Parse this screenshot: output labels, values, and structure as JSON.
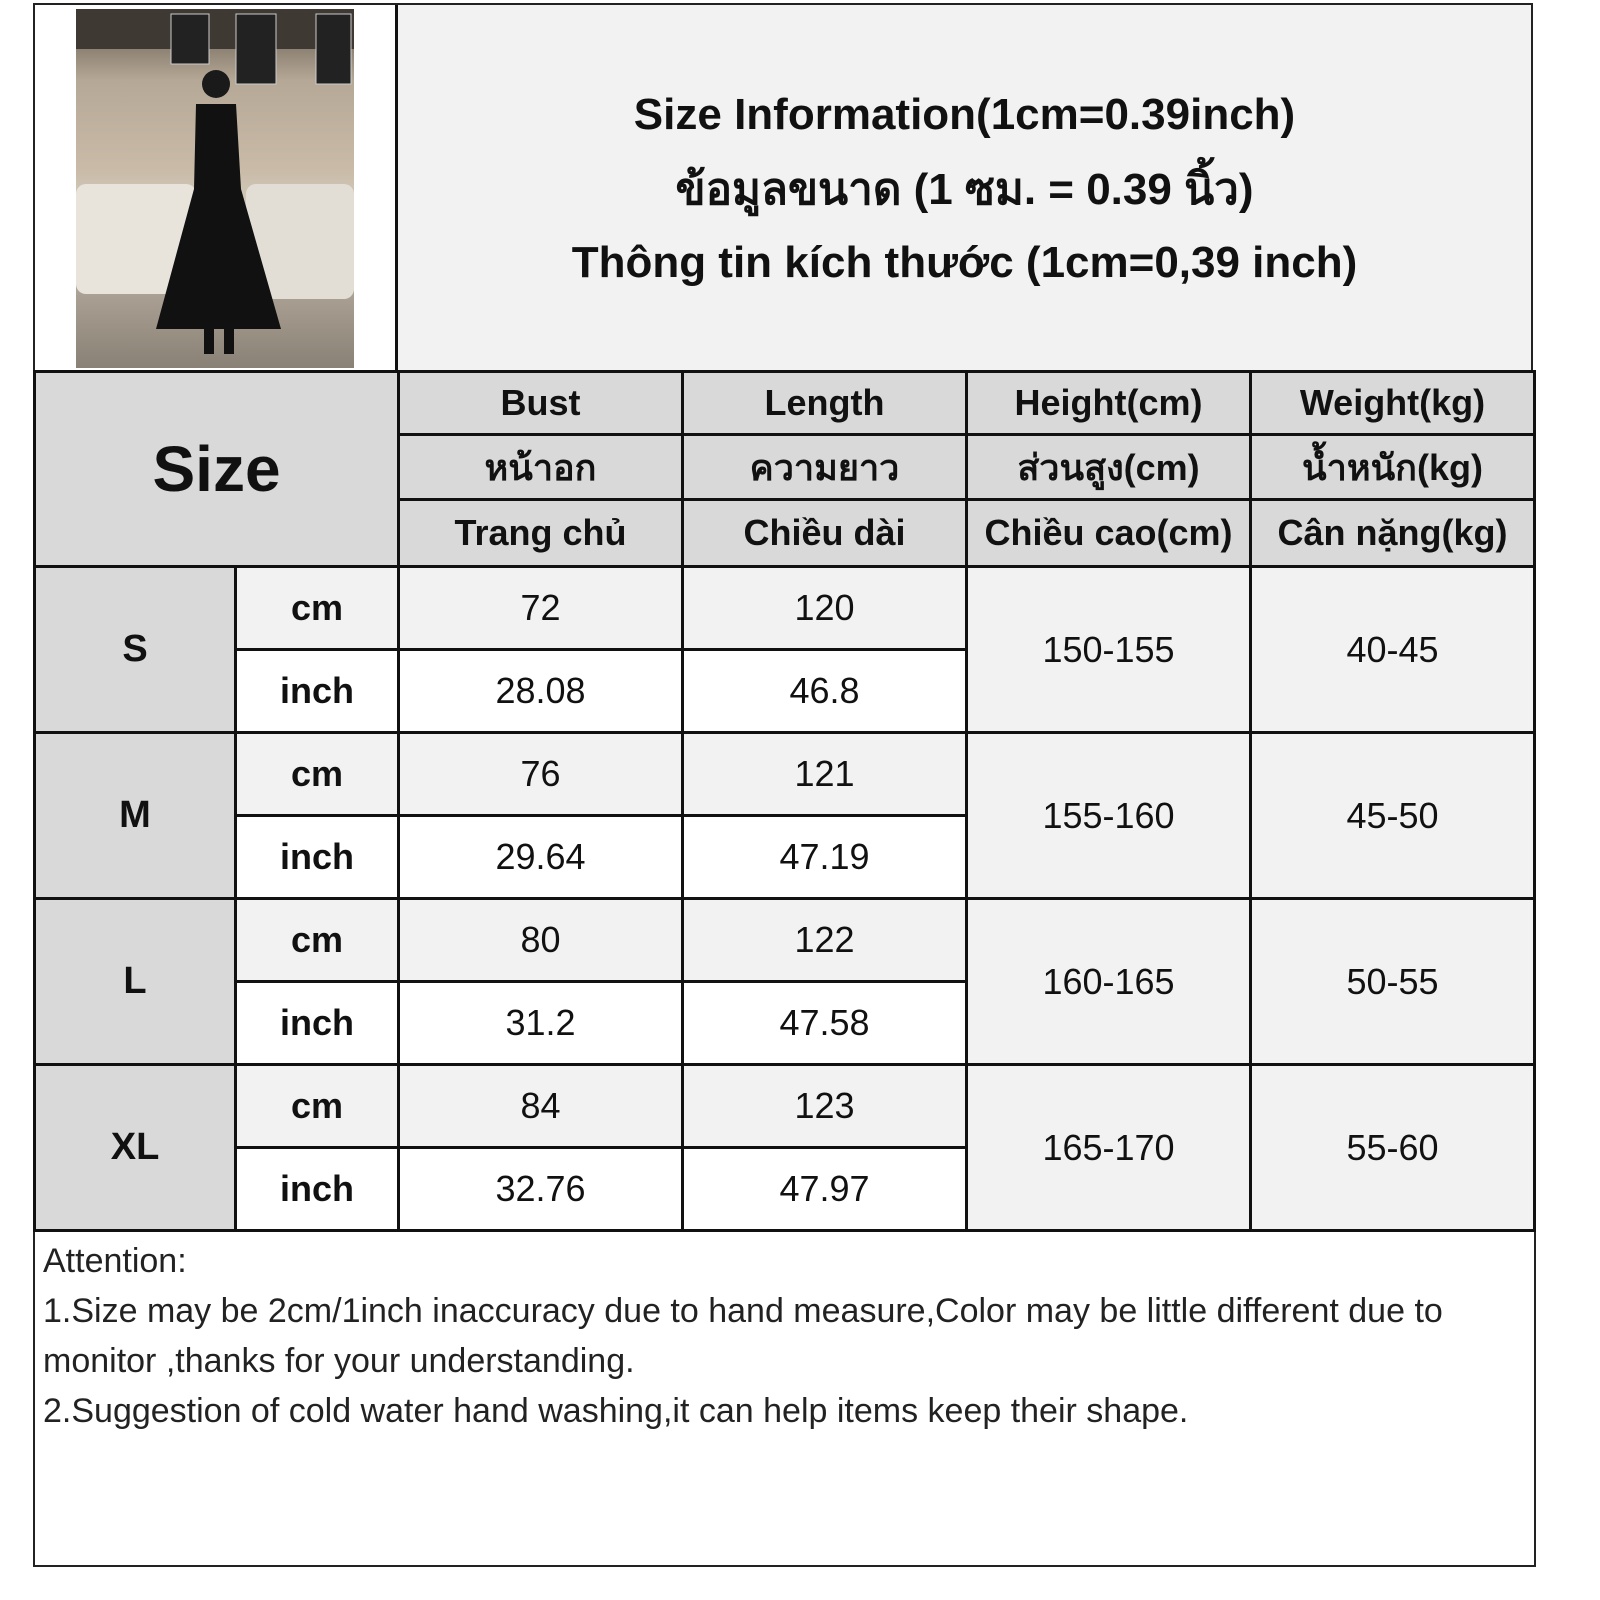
{
  "title": {
    "lines": [
      "Size Information(1cm=0.39inch)",
      "ข้อมูลขนาด (1 ซม. = 0.39 นิ้ว)",
      "Thông tin kích thước (1cm=0,39 inch)"
    ]
  },
  "table": {
    "size_label": "Size",
    "headers": [
      {
        "en": "Bust",
        "th": "หน้าอก",
        "vi": "Trang chủ"
      },
      {
        "en": "Length",
        "th": "ความยาว",
        "vi": "Chiều dài"
      },
      {
        "en": "Height(cm)",
        "th": "ส่วนสูง(cm)",
        "vi": "Chiều cao(cm)"
      },
      {
        "en": "Weight(kg)",
        "th": "น้ำหนัก(kg)",
        "vi": "Cân nặng(kg)"
      }
    ],
    "unit_cm": "cm",
    "unit_inch": "inch",
    "rows": [
      {
        "size": "S",
        "bust_cm": "72",
        "bust_inch": "28.08",
        "length_cm": "120",
        "length_inch": "46.8",
        "height": "150-155",
        "weight": "40-45"
      },
      {
        "size": "M",
        "bust_cm": "76",
        "bust_inch": "29.64",
        "length_cm": "121",
        "length_inch": "47.19",
        "height": "155-160",
        "weight": "45-50"
      },
      {
        "size": "L",
        "bust_cm": "80",
        "bust_inch": "31.2",
        "length_cm": "122",
        "length_inch": "47.58",
        "height": "160-165",
        "weight": "50-55"
      },
      {
        "size": "XL",
        "bust_cm": "84",
        "bust_inch": "32.76",
        "length_cm": "123",
        "length_inch": "47.97",
        "height": "165-170",
        "weight": "55-60"
      }
    ]
  },
  "notes": {
    "heading": "Attention:",
    "lines": [
      "1.Size may be 2cm/1inch inaccuracy due to hand measure,Color may be little different due to monitor ,thanks for your understanding.",
      "2.Suggestion of cold water hand washing,it can help items keep their shape."
    ]
  },
  "colors": {
    "header": "#d9d9d9",
    "light": "#f2f2f2",
    "border": "#111111"
  }
}
